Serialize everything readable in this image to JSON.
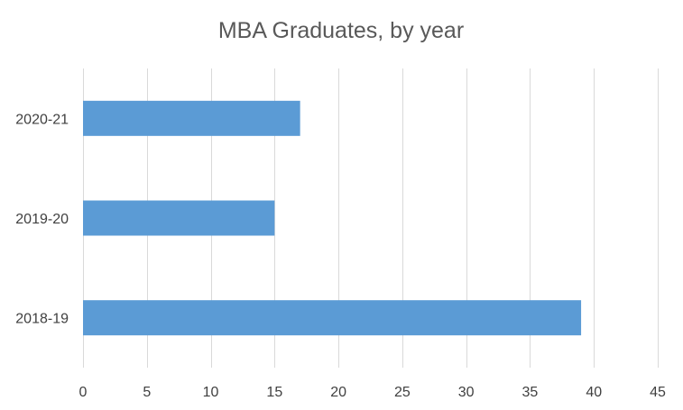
{
  "colors": {
    "bar": "#5B9BD5",
    "grid": "#D9D9D9",
    "text": "#404040",
    "title": "#595959",
    "background": "#FFFFFF"
  },
  "chart_data": {
    "type": "bar",
    "orientation": "horizontal",
    "title": "MBA Graduates, by year",
    "xlabel": "",
    "ylabel": "",
    "categories": [
      "2018-19",
      "2019-20",
      "2020-21"
    ],
    "values": [
      39,
      15,
      17
    ],
    "xlim": [
      0,
      45
    ],
    "x_ticks": [
      0,
      5,
      10,
      15,
      20,
      25,
      30,
      35,
      40,
      45
    ],
    "grid": "vertical",
    "legend": "none"
  }
}
